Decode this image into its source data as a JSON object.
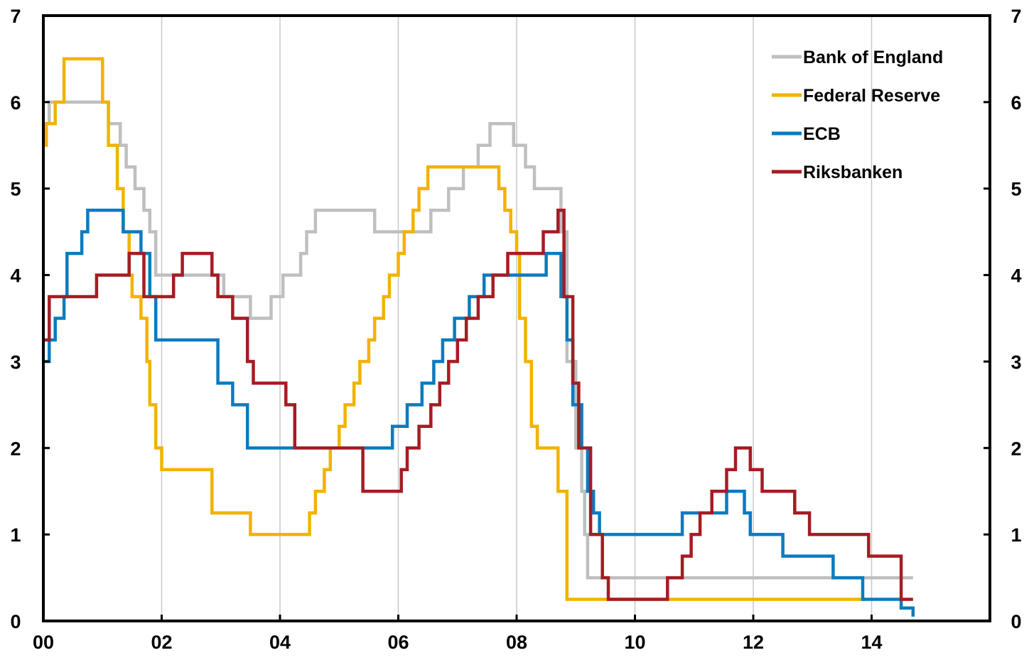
{
  "chart_data": {
    "type": "line",
    "step": true,
    "grid": {
      "vertical": true,
      "horizontal": false
    },
    "legend_position": "top-right",
    "xlim": [
      0,
      16
    ],
    "ylim": [
      0,
      7
    ],
    "x_ticks": [
      0,
      2,
      4,
      6,
      8,
      10,
      12,
      14
    ],
    "x_tick_labels": [
      "00",
      "02",
      "04",
      "06",
      "08",
      "10",
      "12",
      "14"
    ],
    "y_ticks": [
      0,
      1,
      2,
      3,
      4,
      5,
      6,
      7
    ],
    "y_tick_labels": [
      "0",
      "1",
      "2",
      "3",
      "4",
      "5",
      "6",
      "7"
    ],
    "series": [
      {
        "name": "Bank of England",
        "color": "#bfbfbf",
        "points": [
          [
            0,
            5.75
          ],
          [
            0.1,
            6
          ],
          [
            1.1,
            5.75
          ],
          [
            1.3,
            5.5
          ],
          [
            1.4,
            5.25
          ],
          [
            1.55,
            5
          ],
          [
            1.7,
            4.75
          ],
          [
            1.8,
            4.5
          ],
          [
            1.9,
            4
          ],
          [
            3.05,
            3.75
          ],
          [
            3.5,
            3.5
          ],
          [
            3.85,
            3.75
          ],
          [
            4.05,
            4
          ],
          [
            4.35,
            4.25
          ],
          [
            4.45,
            4.5
          ],
          [
            4.6,
            4.75
          ],
          [
            5.6,
            4.5
          ],
          [
            6.55,
            4.75
          ],
          [
            6.85,
            5
          ],
          [
            7.1,
            5.25
          ],
          [
            7.35,
            5.5
          ],
          [
            7.55,
            5.75
          ],
          [
            7.95,
            5.5
          ],
          [
            8.15,
            5.25
          ],
          [
            8.3,
            5
          ],
          [
            8.75,
            4.5
          ],
          [
            8.85,
            3
          ],
          [
            9.0,
            2
          ],
          [
            9.1,
            1.5
          ],
          [
            9.15,
            1
          ],
          [
            9.2,
            0.5
          ],
          [
            14.7,
            0.5
          ]
        ]
      },
      {
        "name": "Federal Reserve",
        "color": "#f2b200",
        "points": [
          [
            0,
            5.5
          ],
          [
            0.05,
            5.75
          ],
          [
            0.2,
            6
          ],
          [
            0.35,
            6.5
          ],
          [
            1.0,
            6
          ],
          [
            1.1,
            5.5
          ],
          [
            1.25,
            5
          ],
          [
            1.35,
            4.5
          ],
          [
            1.45,
            4
          ],
          [
            1.5,
            3.75
          ],
          [
            1.65,
            3.5
          ],
          [
            1.75,
            3
          ],
          [
            1.8,
            2.5
          ],
          [
            1.9,
            2
          ],
          [
            2.0,
            1.75
          ],
          [
            2.85,
            1.25
          ],
          [
            3.5,
            1
          ],
          [
            4.5,
            1.25
          ],
          [
            4.6,
            1.5
          ],
          [
            4.75,
            1.75
          ],
          [
            4.85,
            2
          ],
          [
            5.0,
            2.25
          ],
          [
            5.1,
            2.5
          ],
          [
            5.25,
            2.75
          ],
          [
            5.35,
            3
          ],
          [
            5.5,
            3.25
          ],
          [
            5.6,
            3.5
          ],
          [
            5.75,
            3.75
          ],
          [
            5.85,
            4
          ],
          [
            6.0,
            4.25
          ],
          [
            6.1,
            4.5
          ],
          [
            6.25,
            4.75
          ],
          [
            6.35,
            5
          ],
          [
            6.5,
            5.25
          ],
          [
            7.7,
            5
          ],
          [
            7.8,
            4.75
          ],
          [
            7.9,
            4.5
          ],
          [
            8.0,
            4.25
          ],
          [
            8.05,
            3.5
          ],
          [
            8.15,
            3
          ],
          [
            8.25,
            2.25
          ],
          [
            8.35,
            2
          ],
          [
            8.7,
            1.5
          ],
          [
            8.85,
            0.25
          ],
          [
            13.9,
            0.25
          ]
        ]
      },
      {
        "name": "ECB",
        "color": "#0b7bbf",
        "points": [
          [
            0,
            3
          ],
          [
            0.1,
            3.25
          ],
          [
            0.2,
            3.5
          ],
          [
            0.35,
            3.75
          ],
          [
            0.4,
            4.25
          ],
          [
            0.65,
            4.5
          ],
          [
            0.75,
            4.75
          ],
          [
            1.35,
            4.5
          ],
          [
            1.65,
            4.25
          ],
          [
            1.8,
            3.75
          ],
          [
            1.9,
            3.25
          ],
          [
            2.95,
            2.75
          ],
          [
            3.2,
            2.5
          ],
          [
            3.45,
            2
          ],
          [
            5.9,
            2.25
          ],
          [
            6.15,
            2.5
          ],
          [
            6.4,
            2.75
          ],
          [
            6.6,
            3
          ],
          [
            6.75,
            3.25
          ],
          [
            6.95,
            3.5
          ],
          [
            7.2,
            3.75
          ],
          [
            7.45,
            4
          ],
          [
            8.5,
            4.25
          ],
          [
            8.75,
            3.75
          ],
          [
            8.85,
            3.25
          ],
          [
            8.95,
            2.5
          ],
          [
            9.1,
            2
          ],
          [
            9.2,
            1.5
          ],
          [
            9.3,
            1.25
          ],
          [
            9.4,
            1
          ],
          [
            10.8,
            1.25
          ],
          [
            11.55,
            1.5
          ],
          [
            11.85,
            1.25
          ],
          [
            11.95,
            1
          ],
          [
            12.5,
            0.75
          ],
          [
            13.35,
            0.5
          ],
          [
            13.85,
            0.25
          ],
          [
            14.5,
            0.15
          ],
          [
            14.7,
            0.05
          ]
        ]
      },
      {
        "name": "Riksbanken",
        "color": "#a51c24",
        "points": [
          [
            0,
            3.25
          ],
          [
            0.1,
            3.75
          ],
          [
            0.9,
            4
          ],
          [
            1.45,
            4.25
          ],
          [
            1.7,
            3.75
          ],
          [
            2.2,
            4
          ],
          [
            2.35,
            4.25
          ],
          [
            2.85,
            4
          ],
          [
            2.95,
            3.75
          ],
          [
            3.2,
            3.5
          ],
          [
            3.45,
            3
          ],
          [
            3.55,
            2.75
          ],
          [
            4.1,
            2.5
          ],
          [
            4.25,
            2
          ],
          [
            5.4,
            1.5
          ],
          [
            6.05,
            1.75
          ],
          [
            6.15,
            2
          ],
          [
            6.35,
            2.25
          ],
          [
            6.55,
            2.5
          ],
          [
            6.7,
            2.75
          ],
          [
            6.85,
            3
          ],
          [
            7.0,
            3.25
          ],
          [
            7.15,
            3.5
          ],
          [
            7.35,
            3.75
          ],
          [
            7.6,
            4
          ],
          [
            7.85,
            4.25
          ],
          [
            8.45,
            4.5
          ],
          [
            8.7,
            4.75
          ],
          [
            8.8,
            3.75
          ],
          [
            8.95,
            2.75
          ],
          [
            9.05,
            2
          ],
          [
            9.25,
            1
          ],
          [
            9.45,
            0.5
          ],
          [
            9.55,
            0.25
          ],
          [
            10.55,
            0.5
          ],
          [
            10.8,
            0.75
          ],
          [
            10.95,
            1
          ],
          [
            11.1,
            1.25
          ],
          [
            11.3,
            1.5
          ],
          [
            11.55,
            1.75
          ],
          [
            11.7,
            2
          ],
          [
            11.95,
            1.75
          ],
          [
            12.15,
            1.5
          ],
          [
            12.7,
            1.25
          ],
          [
            12.95,
            1
          ],
          [
            13.95,
            0.75
          ],
          [
            14.5,
            0.25
          ],
          [
            14.7,
            0.25
          ]
        ]
      }
    ]
  }
}
